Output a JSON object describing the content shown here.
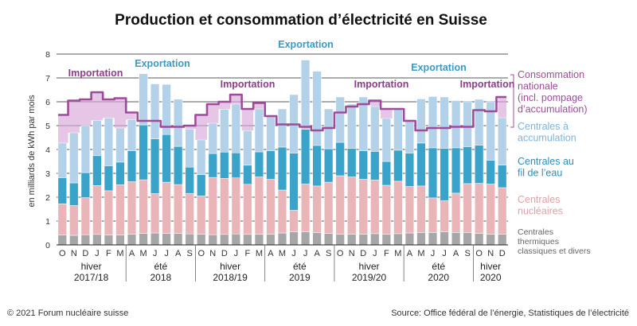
{
  "chart_data": {
    "type": "bar",
    "stacked": true,
    "title": "Production et consommation d’électricité en Suisse",
    "ylabel": "en milliards de kWh par mois",
    "ylim": [
      0,
      8
    ],
    "yticks": [
      "0",
      "1",
      "2",
      "3",
      "4",
      "5",
      "6",
      "7",
      "8"
    ],
    "grid": true,
    "legend_position": "right",
    "months": [
      "O",
      "N",
      "D",
      "J",
      "F",
      "M",
      "A",
      "M",
      "J",
      "J",
      "A",
      "S",
      "O",
      "N",
      "D",
      "J",
      "F",
      "M",
      "A",
      "M",
      "J",
      "J",
      "A",
      "S",
      "O",
      "N",
      "D",
      "J",
      "F",
      "M",
      "A",
      "M",
      "J",
      "J",
      "A",
      "S",
      "O",
      "N",
      "D"
    ],
    "season_groups": [
      {
        "label1": "hiver",
        "label2": "2017/18",
        "count": 6
      },
      {
        "label1": "été",
        "label2": "2018",
        "count": 6
      },
      {
        "label1": "hiver",
        "label2": "2018/19",
        "count": 6
      },
      {
        "label1": "été",
        "label2": "2019",
        "count": 6
      },
      {
        "label1": "hiver",
        "label2": "2019/20",
        "count": 6
      },
      {
        "label1": "été",
        "label2": "2020",
        "count": 6
      },
      {
        "label1": "hiver",
        "label2": "2020",
        "count": 3
      }
    ],
    "series": [
      {
        "name": "Centrales thermiques classiques et divers",
        "color": "#a6a6a6",
        "values": [
          0.42,
          0.4,
          0.43,
          0.44,
          0.42,
          0.42,
          0.45,
          0.48,
          0.5,
          0.48,
          0.48,
          0.46,
          0.45,
          0.43,
          0.44,
          0.46,
          0.44,
          0.45,
          0.45,
          0.5,
          0.55,
          0.55,
          0.52,
          0.48,
          0.45,
          0.45,
          0.45,
          0.47,
          0.45,
          0.47,
          0.5,
          0.52,
          0.52,
          0.55,
          0.52,
          0.52,
          0.48,
          0.45,
          0.45
        ]
      },
      {
        "name": "Centrales nucléaires",
        "color": "#eab5b9",
        "values": [
          1.3,
          1.25,
          1.55,
          2.05,
          1.85,
          2.1,
          2.2,
          2.25,
          1.65,
          2.15,
          2.05,
          1.7,
          1.6,
          2.4,
          2.35,
          2.35,
          2.1,
          2.4,
          2.3,
          1.8,
          0.9,
          2.0,
          1.95,
          2.15,
          2.45,
          2.4,
          2.3,
          2.25,
          2.05,
          2.2,
          1.95,
          1.95,
          1.45,
          1.3,
          1.65,
          2.05,
          2.1,
          2.1,
          1.95
        ]
      },
      {
        "name": "Centrales au fil de l’eau",
        "color": "#3aa3c9",
        "values": [
          1.1,
          0.95,
          1.05,
          1.25,
          1.05,
          0.95,
          1.3,
          2.3,
          2.3,
          2.0,
          1.6,
          1.1,
          0.9,
          1.0,
          1.1,
          1.05,
          0.8,
          1.05,
          1.2,
          1.8,
          2.4,
          2.3,
          1.7,
          1.4,
          1.4,
          1.2,
          1.2,
          1.2,
          1.0,
          1.3,
          1.4,
          1.8,
          2.1,
          2.2,
          1.9,
          1.55,
          1.6,
          1.0,
          0.95
        ]
      },
      {
        "name": "Centrales à accumulation",
        "color": "#b3d1e9",
        "values": [
          1.45,
          2.1,
          1.97,
          1.48,
          2.0,
          1.43,
          1.3,
          2.15,
          2.3,
          2.1,
          1.98,
          1.6,
          1.45,
          1.27,
          1.8,
          2.04,
          1.45,
          1.8,
          1.45,
          1.6,
          2.45,
          2.9,
          3.11,
          1.67,
          1.9,
          1.85,
          2.25,
          1.88,
          1.8,
          1.73,
          1.4,
          1.85,
          2.15,
          2.15,
          1.98,
          1.88,
          1.92,
          2.45,
          1.98
        ]
      },
      {
        "name": "Consommation nationale (incl. pompage d’accumulation)",
        "color": "#9e4b9a",
        "type": "line",
        "values": [
          5.45,
          6.05,
          6.1,
          6.4,
          6.1,
          6.15,
          5.55,
          5.2,
          5.2,
          4.95,
          4.95,
          5.0,
          5.45,
          5.9,
          6.0,
          6.3,
          5.7,
          5.95,
          5.4,
          5.05,
          5.05,
          4.95,
          4.8,
          4.9,
          5.55,
          5.8,
          5.9,
          6.05,
          5.7,
          5.7,
          5.2,
          4.8,
          4.9,
          4.9,
          4.95,
          4.95,
          5.65,
          5.6,
          6.2
        ]
      }
    ],
    "annotations": [
      {
        "text": "Importation",
        "kind": "import"
      },
      {
        "text": "Exportation",
        "kind": "export"
      },
      {
        "text": "Exportation",
        "kind": "export"
      },
      {
        "text": "Importation",
        "kind": "import"
      },
      {
        "text": "Importation",
        "kind": "import"
      },
      {
        "text": "Exportation",
        "kind": "export"
      },
      {
        "text": "Importation",
        "kind": "import"
      }
    ],
    "colors": {
      "import_text": "#8e3c8c",
      "import_fill": "#d9a8d8",
      "export_text": "#3a9bc4",
      "consumption_line": "#9e4b9a",
      "grid": "#222222"
    }
  },
  "legend": {
    "consommation": [
      "Consommation",
      "nationale",
      "(incl. pompage",
      "d’accumulation)"
    ],
    "accumulation": [
      "Centrales à",
      "accumulation"
    ],
    "fil_eau": [
      "Centrales au",
      "fil de l’eau"
    ],
    "nucleaires": [
      "Centrales",
      "nucléaires"
    ],
    "thermiques": [
      "Centrales",
      "thermiques",
      "classiques et divers"
    ]
  },
  "footer": {
    "left": "© 2021 Forum nucléaire suisse",
    "right": "Source: Office fédéral de l’énergie, Statistiques de l’électricité"
  }
}
